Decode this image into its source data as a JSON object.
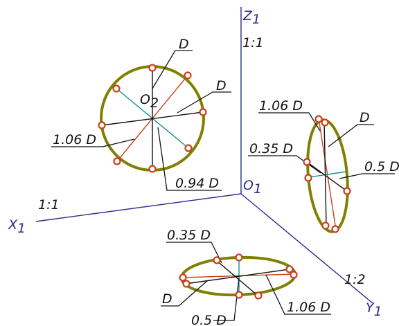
{
  "colors": {
    "axis": "#2b2b8c",
    "ellipse": "#808000",
    "red_line": "#c8401c",
    "teal_line": "#1a8f8f",
    "leader": "#111111",
    "point_stroke": "#c8401c",
    "point_fill": "#ffffff"
  },
  "axes": {
    "z_label": "Z",
    "z_sub": "1",
    "x_label": "X",
    "x_sub": "1",
    "y_label": "Y",
    "y_sub": "1",
    "origin_label": "O",
    "origin_sub": "1",
    "z_scale": "1:1",
    "x_scale": "1:1",
    "y_scale": "1:2"
  },
  "front_view": {
    "center_label": "O",
    "center_sub": "2",
    "d_top": "D",
    "d_right": "D",
    "d_106": "1.06 D",
    "d_094": "0.94 D"
  },
  "side_view": {
    "d_106": "1.06 D",
    "d_top": "D",
    "d_035": "0.35 D",
    "d_05": "0.5 D"
  },
  "top_view": {
    "d_035": "0.35 D",
    "d_left": "D",
    "d_05": "0.5 D",
    "d_106": "1.06 D"
  }
}
